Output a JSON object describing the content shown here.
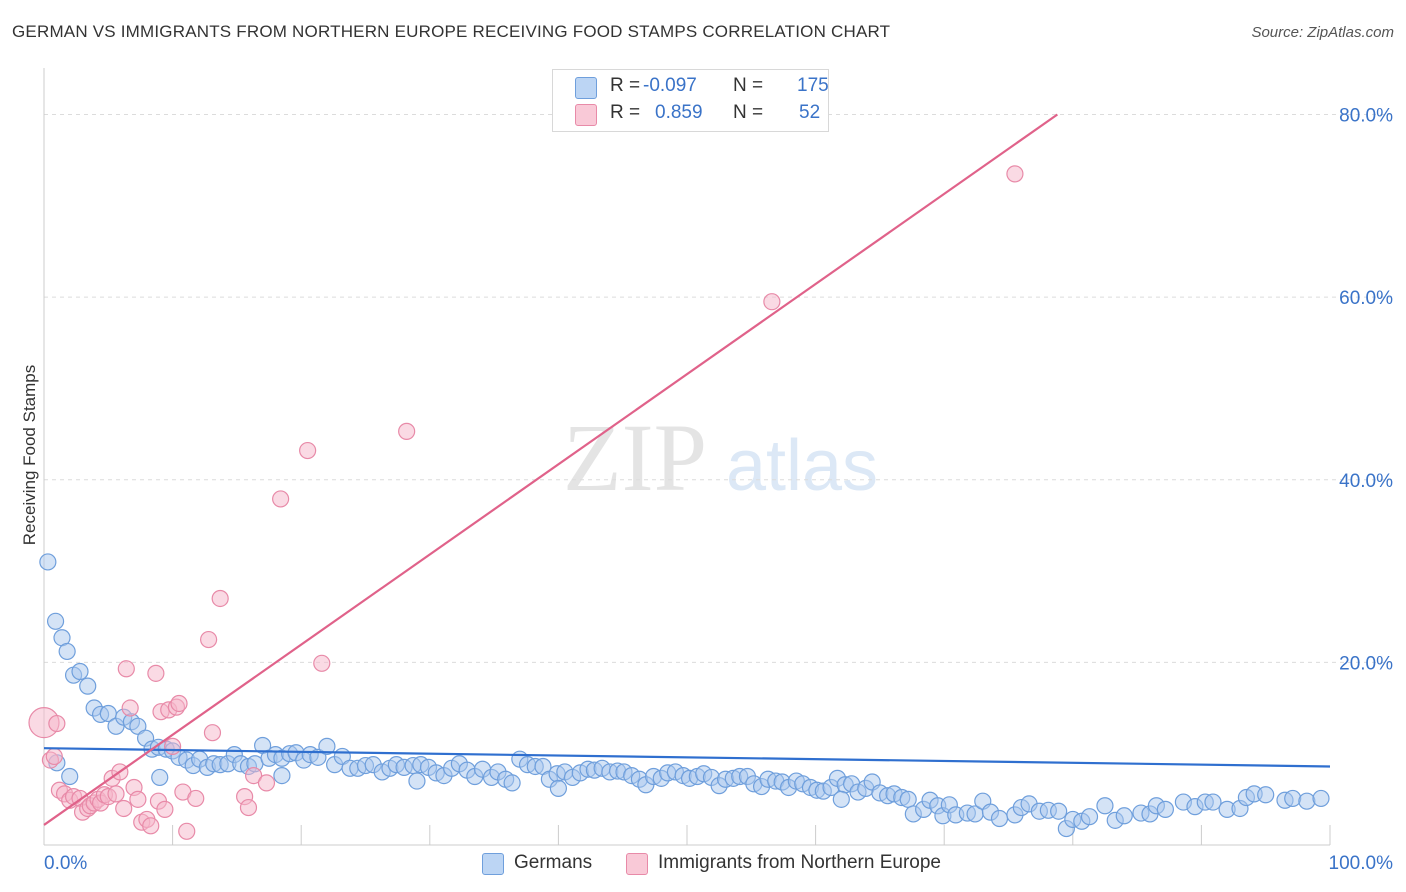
{
  "title": "GERMAN VS IMMIGRANTS FROM NORTHERN EUROPE RECEIVING FOOD STAMPS CORRELATION CHART",
  "source": "Source: ZipAtlas.com",
  "watermark": {
    "part1": "ZIP",
    "part2": "atlas"
  },
  "legend": {
    "rows": [
      {
        "r_label": "R =",
        "r_value": "-0.097",
        "n_label": "N =",
        "n_value": "175"
      },
      {
        "r_label": "R =",
        "r_value": "0.859",
        "n_label": "N =",
        "n_value": "52"
      }
    ]
  },
  "colors": {
    "blue_fill": "#a9c8ee",
    "blue_stroke": "#6f9fdc",
    "blue_line": "#2f6fcf",
    "pink_fill": "#f6b6c9",
    "pink_stroke": "#e88aa8",
    "pink_line": "#e0628a",
    "axis_text": "#3a73c8",
    "grid": "#dcdcdc"
  },
  "chart_data": {
    "type": "scatter",
    "title": "GERMAN VS IMMIGRANTS FROM NORTHERN EUROPE RECEIVING FOOD STAMPS CORRELATION CHART",
    "xlabel": "",
    "ylabel": "Receiving Food Stamps",
    "xlim": [
      0,
      100
    ],
    "ylim": [
      0,
      84
    ],
    "x_tick_labels": [
      "0.0%",
      "100.0%"
    ],
    "y_ticks": [
      20,
      40,
      60,
      80
    ],
    "y_tick_labels": [
      "20.0%",
      "40.0%",
      "60.0%",
      "80.0%"
    ],
    "grid": true,
    "series": [
      {
        "name": "Germans",
        "R": -0.097,
        "N": 175,
        "trend": [
          [
            0,
            10.6
          ],
          [
            100,
            8.6
          ]
        ],
        "points": [
          [
            0.3,
            31.0
          ],
          [
            0.9,
            24.5
          ],
          [
            1.4,
            22.7
          ],
          [
            1.8,
            21.2
          ],
          [
            2.3,
            18.6
          ],
          [
            2.8,
            19.0
          ],
          [
            3.4,
            17.4
          ],
          [
            3.9,
            15.0
          ],
          [
            4.4,
            14.3
          ],
          [
            5.0,
            14.4
          ],
          [
            5.6,
            13.0
          ],
          [
            6.2,
            14.0
          ],
          [
            6.8,
            13.5
          ],
          [
            7.3,
            13.0
          ],
          [
            7.9,
            11.7
          ],
          [
            8.4,
            10.5
          ],
          [
            8.9,
            10.7
          ],
          [
            9.5,
            10.5
          ],
          [
            10.0,
            10.3
          ],
          [
            10.5,
            9.6
          ],
          [
            11.1,
            9.3
          ],
          [
            11.6,
            8.7
          ],
          [
            12.1,
            9.4
          ],
          [
            12.7,
            8.5
          ],
          [
            13.2,
            8.9
          ],
          [
            13.7,
            8.8
          ],
          [
            14.3,
            8.9
          ],
          [
            14.8,
            9.9
          ],
          [
            15.3,
            8.9
          ],
          [
            15.9,
            8.6
          ],
          [
            16.4,
            8.9
          ],
          [
            17.0,
            10.9
          ],
          [
            17.5,
            9.5
          ],
          [
            18.0,
            9.9
          ],
          [
            18.5,
            9.5
          ],
          [
            19.1,
            10.0
          ],
          [
            19.6,
            10.1
          ],
          [
            20.2,
            9.3
          ],
          [
            20.7,
            9.9
          ],
          [
            21.3,
            9.6
          ],
          [
            22.0,
            10.8
          ],
          [
            22.6,
            8.8
          ],
          [
            23.2,
            9.7
          ],
          [
            23.8,
            8.4
          ],
          [
            24.4,
            8.4
          ],
          [
            25.0,
            8.7
          ],
          [
            25.6,
            8.8
          ],
          [
            26.3,
            8.0
          ],
          [
            26.9,
            8.4
          ],
          [
            27.4,
            8.8
          ],
          [
            28.0,
            8.5
          ],
          [
            28.7,
            8.7
          ],
          [
            29.3,
            8.8
          ],
          [
            29.9,
            8.5
          ],
          [
            30.5,
            7.9
          ],
          [
            31.1,
            7.6
          ],
          [
            31.7,
            8.4
          ],
          [
            32.3,
            8.9
          ],
          [
            32.9,
            8.2
          ],
          [
            33.5,
            7.5
          ],
          [
            34.1,
            8.3
          ],
          [
            34.8,
            7.4
          ],
          [
            35.3,
            8.0
          ],
          [
            35.9,
            7.2
          ],
          [
            36.4,
            6.8
          ],
          [
            37.0,
            9.4
          ],
          [
            37.6,
            8.8
          ],
          [
            38.2,
            8.6
          ],
          [
            38.8,
            8.6
          ],
          [
            39.3,
            7.2
          ],
          [
            39.9,
            7.8
          ],
          [
            40.5,
            8.0
          ],
          [
            41.1,
            7.4
          ],
          [
            41.7,
            7.9
          ],
          [
            42.3,
            8.3
          ],
          [
            42.8,
            8.2
          ],
          [
            43.4,
            8.4
          ],
          [
            44.0,
            8.0
          ],
          [
            44.6,
            8.1
          ],
          [
            45.1,
            8.0
          ],
          [
            45.7,
            7.6
          ],
          [
            46.3,
            7.2
          ],
          [
            46.8,
            6.6
          ],
          [
            47.4,
            7.5
          ],
          [
            48.0,
            7.3
          ],
          [
            48.5,
            7.9
          ],
          [
            49.1,
            8.0
          ],
          [
            49.7,
            7.6
          ],
          [
            50.2,
            7.3
          ],
          [
            50.8,
            7.5
          ],
          [
            51.3,
            7.8
          ],
          [
            51.9,
            7.4
          ],
          [
            52.5,
            6.5
          ],
          [
            53.0,
            7.2
          ],
          [
            53.6,
            7.3
          ],
          [
            54.1,
            7.5
          ],
          [
            54.7,
            7.5
          ],
          [
            55.2,
            6.7
          ],
          [
            55.8,
            6.4
          ],
          [
            56.3,
            7.2
          ],
          [
            56.9,
            7.0
          ],
          [
            57.4,
            6.9
          ],
          [
            57.9,
            6.3
          ],
          [
            58.5,
            7.0
          ],
          [
            59.0,
            6.7
          ],
          [
            59.6,
            6.3
          ],
          [
            60.1,
            6.0
          ],
          [
            60.6,
            5.9
          ],
          [
            61.2,
            6.3
          ],
          [
            61.7,
            7.3
          ],
          [
            62.3,
            6.6
          ],
          [
            62.8,
            6.7
          ],
          [
            63.3,
            5.8
          ],
          [
            63.9,
            6.2
          ],
          [
            64.4,
            6.9
          ],
          [
            65.0,
            5.7
          ],
          [
            65.6,
            5.4
          ],
          [
            66.1,
            5.6
          ],
          [
            66.7,
            5.2
          ],
          [
            67.2,
            5.0
          ],
          [
            67.6,
            3.4
          ],
          [
            68.4,
            3.9
          ],
          [
            68.9,
            4.9
          ],
          [
            69.5,
            4.3
          ],
          [
            69.9,
            3.2
          ],
          [
            70.4,
            4.4
          ],
          [
            70.9,
            3.3
          ],
          [
            71.8,
            3.5
          ],
          [
            72.4,
            3.4
          ],
          [
            73.0,
            4.8
          ],
          [
            73.6,
            3.6
          ],
          [
            74.3,
            2.9
          ],
          [
            75.5,
            3.3
          ],
          [
            76.0,
            4.1
          ],
          [
            76.6,
            4.5
          ],
          [
            77.4,
            3.7
          ],
          [
            78.1,
            3.8
          ],
          [
            78.9,
            3.7
          ],
          [
            79.5,
            1.8
          ],
          [
            80.0,
            2.8
          ],
          [
            80.7,
            2.6
          ],
          [
            81.3,
            3.1
          ],
          [
            82.5,
            4.3
          ],
          [
            83.3,
            2.7
          ],
          [
            84.0,
            3.2
          ],
          [
            85.3,
            3.5
          ],
          [
            86.0,
            3.4
          ],
          [
            86.5,
            4.3
          ],
          [
            87.2,
            3.9
          ],
          [
            88.6,
            4.7
          ],
          [
            89.5,
            4.2
          ],
          [
            90.3,
            4.7
          ],
          [
            90.9,
            4.7
          ],
          [
            92.0,
            3.9
          ],
          [
            93.0,
            4.0
          ],
          [
            93.5,
            5.2
          ],
          [
            94.1,
            5.6
          ],
          [
            95.0,
            5.5
          ],
          [
            96.5,
            4.9
          ],
          [
            97.1,
            5.1
          ],
          [
            98.2,
            4.8
          ],
          [
            99.3,
            5.1
          ],
          [
            1.0,
            9.0
          ],
          [
            2.0,
            7.5
          ],
          [
            9.0,
            7.4
          ],
          [
            18.5,
            7.6
          ],
          [
            29.0,
            7.0
          ],
          [
            40.0,
            6.2
          ],
          [
            62.0,
            5.0
          ]
        ]
      },
      {
        "name": "Immigrants from Northern Europe",
        "R": 0.859,
        "N": 52,
        "trend": [
          [
            0,
            2.2
          ],
          [
            78.8,
            80.0
          ]
        ],
        "points": [
          [
            0.0,
            13.4
          ],
          [
            0.5,
            9.3
          ],
          [
            0.8,
            9.7
          ],
          [
            1.2,
            6.0
          ],
          [
            1.6,
            5.6
          ],
          [
            2.0,
            4.9
          ],
          [
            2.3,
            5.3
          ],
          [
            2.8,
            5.1
          ],
          [
            3.0,
            3.6
          ],
          [
            3.4,
            4.0
          ],
          [
            3.6,
            4.3
          ],
          [
            3.9,
            4.6
          ],
          [
            4.2,
            5.0
          ],
          [
            4.4,
            4.6
          ],
          [
            4.7,
            5.5
          ],
          [
            5.0,
            5.3
          ],
          [
            5.3,
            7.3
          ],
          [
            5.6,
            5.6
          ],
          [
            5.9,
            8.0
          ],
          [
            6.2,
            4.0
          ],
          [
            6.4,
            19.3
          ],
          [
            6.7,
            15.0
          ],
          [
            7.0,
            6.3
          ],
          [
            7.3,
            5.0
          ],
          [
            7.6,
            2.5
          ],
          [
            8.0,
            2.8
          ],
          [
            8.3,
            2.1
          ],
          [
            8.7,
            18.8
          ],
          [
            8.9,
            4.8
          ],
          [
            9.1,
            14.6
          ],
          [
            9.4,
            3.9
          ],
          [
            9.7,
            14.8
          ],
          [
            10.0,
            10.8
          ],
          [
            10.3,
            15.1
          ],
          [
            10.5,
            15.5
          ],
          [
            10.8,
            5.8
          ],
          [
            11.1,
            1.5
          ],
          [
            11.8,
            5.1
          ],
          [
            12.8,
            22.5
          ],
          [
            13.1,
            12.3
          ],
          [
            13.7,
            27.0
          ],
          [
            15.6,
            5.3
          ],
          [
            15.9,
            4.1
          ],
          [
            16.3,
            7.6
          ],
          [
            17.3,
            6.8
          ],
          [
            18.4,
            37.9
          ],
          [
            20.5,
            43.2
          ],
          [
            21.6,
            19.9
          ],
          [
            28.2,
            45.3
          ],
          [
            56.6,
            59.5
          ],
          [
            75.5,
            73.5
          ],
          [
            1.0,
            13.3
          ]
        ]
      }
    ]
  },
  "bottom_legend": {
    "items": [
      "Germans",
      "Immigrants from Northern Europe"
    ]
  }
}
